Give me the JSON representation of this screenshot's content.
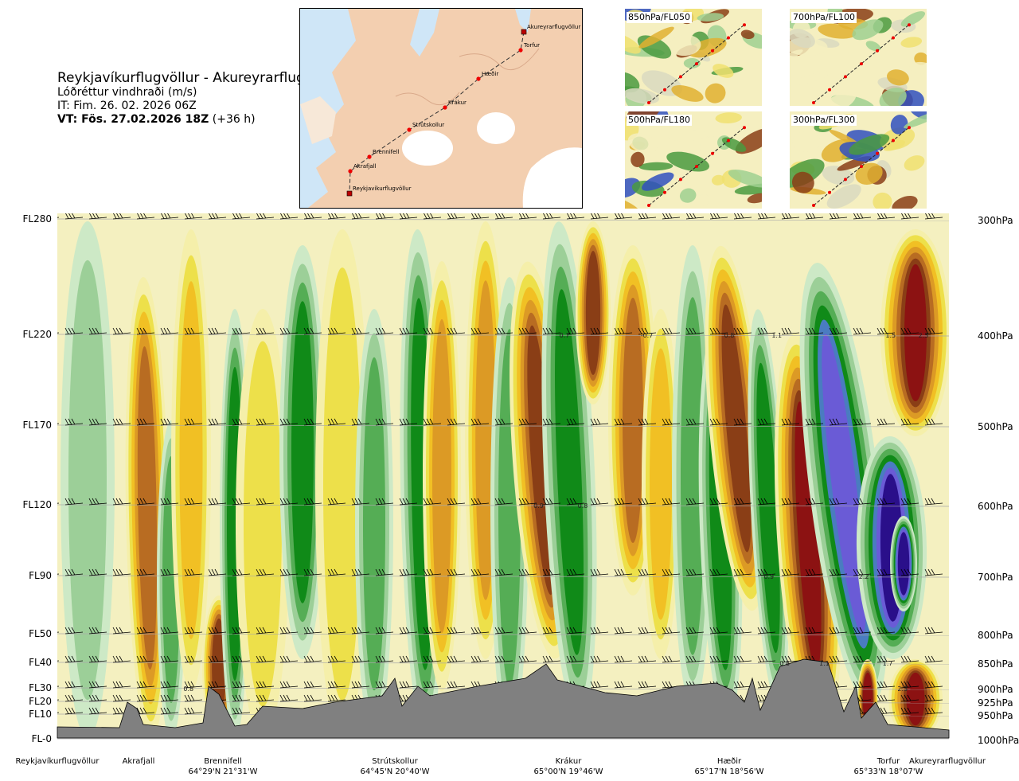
{
  "header": {
    "route_title": "Reykjavíkurflugvöllur - Akureyrarflugvöllur",
    "variable": "Lóðréttur vindhraði (m/s)",
    "init_time": "IT: Fim. 26. 02. 2026 06Z",
    "valid_prefix": "VT: Fös. 27.02.2026 18Z",
    "valid_suffix": "(+36 h)"
  },
  "route_map": {
    "points": [
      {
        "name": "Akureyrarflugvöllur",
        "marker": "square"
      },
      {
        "name": "Torfur",
        "marker": "dot"
      },
      {
        "name": "Hæðir",
        "marker": "dot"
      },
      {
        "name": "Krákur",
        "marker": "dot"
      },
      {
        "name": "Strútskollur",
        "marker": "dot"
      },
      {
        "name": "Brennifell",
        "marker": "dot"
      },
      {
        "name": "Akrafjall",
        "marker": "dot"
      },
      {
        "name": "Reykjavíkurflugvöllur",
        "marker": "square"
      }
    ]
  },
  "level_maps": [
    {
      "label": "850hPa/FL050"
    },
    {
      "label": "700hPa/FL100"
    },
    {
      "label": "500hPa/FL180"
    },
    {
      "label": "300hPa/FL300"
    }
  ],
  "chart_data": {
    "type": "heatmap",
    "title": "Lóðréttur vindhraði (m/s)",
    "y_levels": [
      {
        "fl": "FL280",
        "hpa": "300hPa"
      },
      {
        "fl": "FL220",
        "hpa": "400hPa"
      },
      {
        "fl": "FL170",
        "hpa": "500hPa"
      },
      {
        "fl": "FL120",
        "hpa": "600hPa"
      },
      {
        "fl": "FL90",
        "hpa": "700hPa"
      },
      {
        "fl": "FL50",
        "hpa": "800hPa"
      },
      {
        "fl": "FL40",
        "hpa": "850hPa"
      },
      {
        "fl": "FL30",
        "hpa": "900hPa"
      },
      {
        "fl": "FL20",
        "hpa": "925hPa"
      },
      {
        "fl": "FL10",
        "hpa": "950hPa"
      },
      {
        "fl": "FL-0",
        "hpa": "1000hPa"
      }
    ],
    "x_waypoints": [
      {
        "name": "Reykjavíkurflugvöllur",
        "coord": ""
      },
      {
        "name": "Akrafjall",
        "coord": ""
      },
      {
        "name": "Brennifell",
        "coord": "64°29'N 21°31'W"
      },
      {
        "name": "Strútskollur",
        "coord": "64°45'N 20°40'W"
      },
      {
        "name": "Krákur",
        "coord": "65°00'N 19°46'W"
      },
      {
        "name": "Hæðir",
        "coord": "65°17'N 18°56'W"
      },
      {
        "name": "Torfur",
        "coord": "65°33'N 18°07'W"
      },
      {
        "name": "Akureyrarflugvöllur",
        "coord": ""
      }
    ],
    "color_scale": {
      "colors_negative": [
        "#2a0f8a",
        "#6a5bd6",
        "#4a7cc0",
        "#108a18",
        "#55ad55",
        "#9ccf98",
        "#cde9c6",
        "#eef8e6"
      ],
      "colors_positive": [
        "#fff6c8",
        "#f5efaa",
        "#ede04a",
        "#f1c024",
        "#dc9a25",
        "#b86c22",
        "#8a3e16",
        "#8c1212",
        "#e81010"
      ]
    },
    "annotations": [
      {
        "text": "0.7",
        "x_station": 4.1,
        "level": "FL220"
      },
      {
        "text": "-0.7",
        "x_station": 4.55,
        "level": "FL220"
      },
      {
        "text": "0.8",
        "x_station": 5.0,
        "level": "FL220"
      },
      {
        "text": "1.1",
        "x_station": 5.3,
        "level": "FL220"
      },
      {
        "text": "1.5",
        "x_station": 6.05,
        "level": "FL220"
      },
      {
        "text": "2.3",
        "x_station": 6.6,
        "level": "FL220"
      },
      {
        "text": "0.9",
        "x_station": 3.95,
        "level": "FL120"
      },
      {
        "text": "0.8",
        "x_station": 4.2,
        "level": "FL120"
      },
      {
        "text": "0.9",
        "x_station": 5.25,
        "level": "FL90"
      },
      {
        "text": "2.2",
        "x_station": 5.85,
        "level": "FL90"
      },
      {
        "text": "0.8",
        "x_station": 5.35,
        "level": "FL40"
      },
      {
        "text": "1.1",
        "x_station": 5.6,
        "level": "FL40"
      },
      {
        "text": "1.7",
        "x_station": 6.0,
        "level": "FL40"
      },
      {
        "text": "0.8",
        "x_station": 1.6,
        "level": "FL30"
      },
      {
        "text": "2.3",
        "x_station": 6.25,
        "level": "FL30"
      }
    ]
  }
}
